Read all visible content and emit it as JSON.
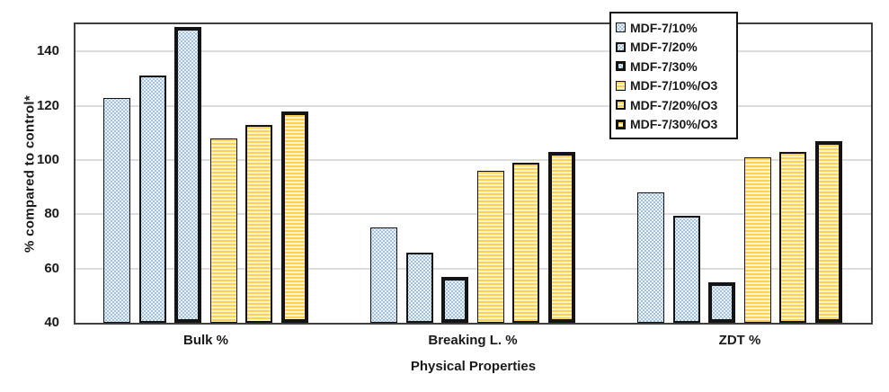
{
  "chart_data": {
    "type": "bar",
    "title": "",
    "xlabel": "Physical Properties",
    "ylabel": "% compared to control*",
    "categories": [
      "Bulk %",
      "Breaking L. %",
      "ZDT %"
    ],
    "series": [
      {
        "name": "MDF-7/10%",
        "pattern": "blue-dots",
        "border_weight": "thin",
        "values": [
          123,
          75,
          88
        ]
      },
      {
        "name": "MDF-7/20%",
        "pattern": "blue-dots",
        "border_weight": "medium",
        "values": [
          131,
          66,
          79.5
        ]
      },
      {
        "name": "MDF-7/30%",
        "pattern": "blue-dots",
        "border_weight": "thick",
        "values": [
          149,
          57,
          55
        ]
      },
      {
        "name": "MDF-7/10%/O3",
        "pattern": "yellow-stripes",
        "border_weight": "thin",
        "values": [
          108,
          96,
          101
        ]
      },
      {
        "name": "MDF-7/20%/O3",
        "pattern": "yellow-stripes",
        "border_weight": "medium",
        "values": [
          113,
          99,
          103
        ]
      },
      {
        "name": "MDF-7/30%/O3",
        "pattern": "yellow-stripes",
        "border_weight": "thick",
        "values": [
          118,
          103,
          107
        ]
      }
    ],
    "ylim": [
      40,
      150
    ],
    "yticks": [
      40,
      60,
      80,
      100,
      120,
      140
    ],
    "grid": true,
    "legend_position": "top-right"
  },
  "colors": {
    "blue_fill": "#eaf1f8",
    "blue_dot": "#8db3d3",
    "yellow_fill": "#ffd34f",
    "yellow_stripe": "#fff4cf",
    "bar_border": "#141414",
    "axis_border": "#3f3f3f",
    "gridline": "#dcdcdc",
    "text": "#1a1a1a"
  }
}
